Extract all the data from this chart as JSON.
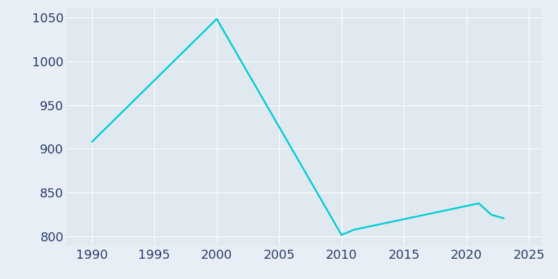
{
  "years": [
    1990,
    2000,
    2010,
    2011,
    2020,
    2021,
    2022,
    2023
  ],
  "population": [
    908,
    1048,
    802,
    808,
    835,
    838,
    825,
    821
  ],
  "line_color": "#00CED1",
  "fig_facecolor": "#E8EEF5",
  "axes_facecolor": "#E0E8F0",
  "xlim": [
    1988,
    2026
  ],
  "ylim": [
    790,
    1060
  ],
  "xticks": [
    1990,
    1995,
    2000,
    2005,
    2010,
    2015,
    2020,
    2025
  ],
  "yticks": [
    800,
    850,
    900,
    950,
    1000,
    1050
  ],
  "tick_color": "#2B3D6B",
  "grid_color": "#ffffff",
  "line_width": 1.8,
  "tick_labelsize": 13
}
